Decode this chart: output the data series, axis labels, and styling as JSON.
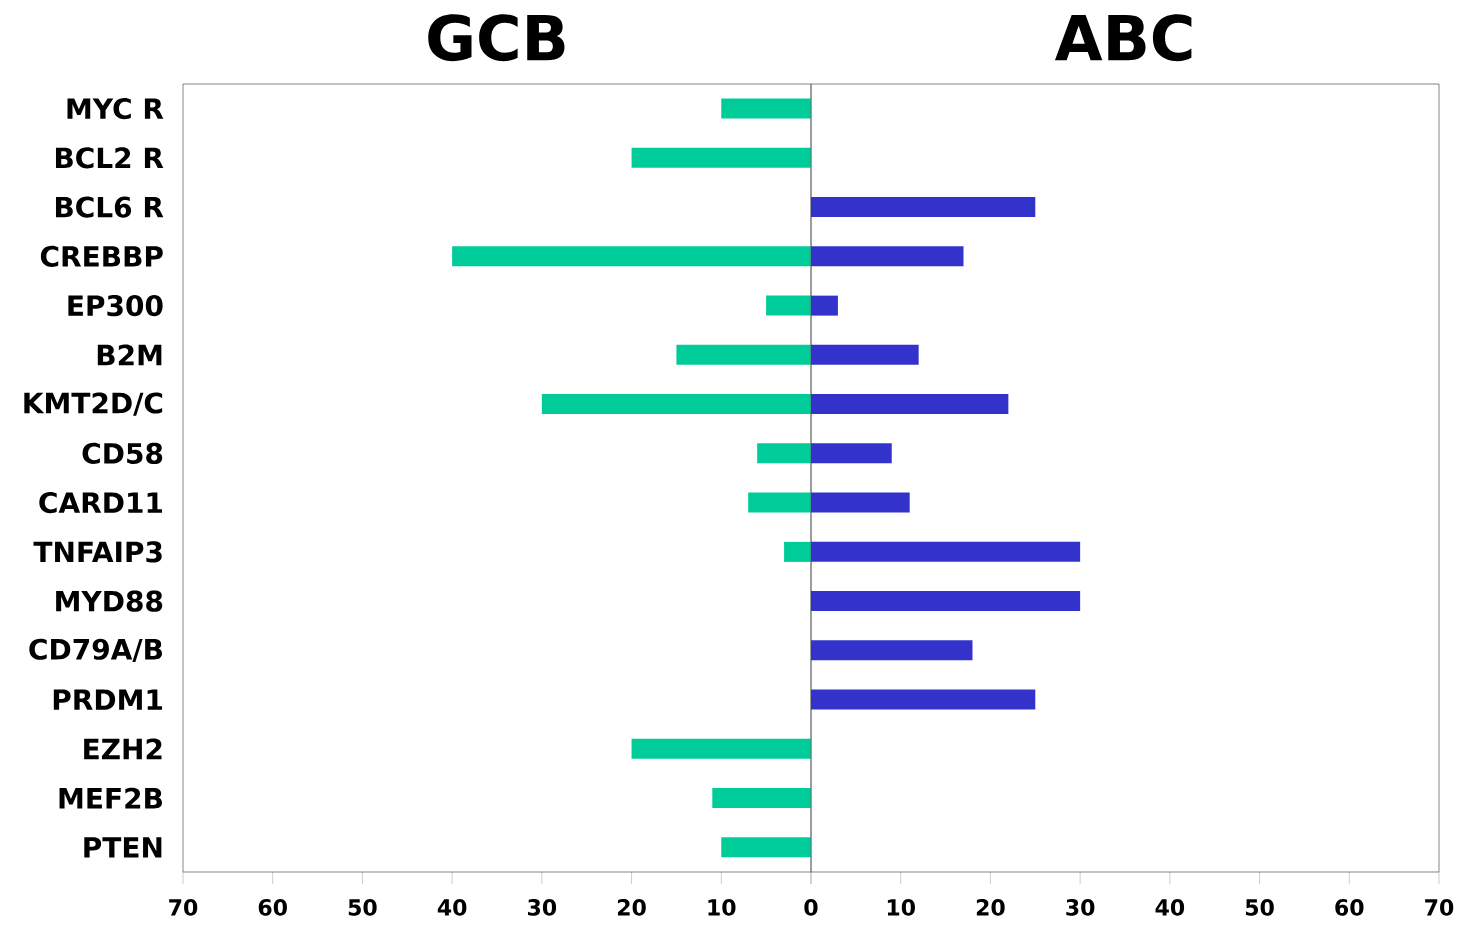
{
  "chart_data": [
    {
      "type": "bar",
      "orientation": "horizontal",
      "categories": [
        "MYC R",
        "BCL2 R",
        "BCL6 R",
        "CREBBP",
        "EP300",
        "B2M",
        "KMT2D/C",
        "CD58",
        "CARD11",
        "TNFAIP3",
        "MYD88",
        "CD79A/B",
        "PRDM1",
        "EZH2",
        "MEF2B",
        "PTEN"
      ],
      "series": [
        {
          "name": "GCB",
          "color": "#00cc99",
          "values": [
            10,
            20,
            null,
            40,
            5,
            15,
            30,
            6,
            7,
            3,
            null,
            null,
            null,
            20,
            11,
            10
          ]
        }
      ],
      "xlim": [
        70,
        0
      ],
      "xticks": [
        70,
        60,
        50,
        40,
        30,
        20,
        10,
        0
      ],
      "grid": false
    },
    {
      "type": "bar",
      "orientation": "horizontal",
      "categories": [
        null,
        null,
        null,
        null,
        null,
        null,
        null,
        null,
        null,
        null,
        null,
        null,
        null,
        null,
        null,
        null
      ],
      "series": [
        {
          "name": "ABC",
          "color": "#3333cc",
          "values": [
            null,
            null,
            25,
            17,
            3,
            12,
            22,
            9,
            11,
            30,
            30,
            18,
            25,
            null,
            null,
            null
          ]
        }
      ],
      "xlim": [
        0,
        70
      ],
      "xticks": [
        {
          "value": 0,
          "label": null
        },
        10,
        20,
        30,
        40,
        50,
        60,
        70
      ],
      "grid": false
    }
  ]
}
